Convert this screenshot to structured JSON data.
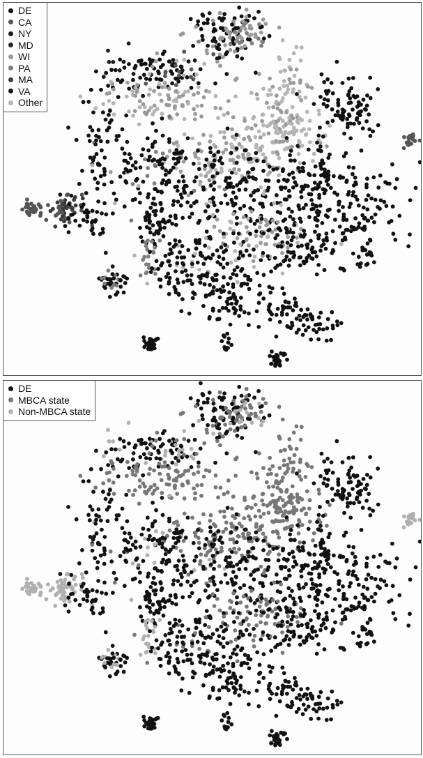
{
  "chart_data": [
    {
      "type": "scatter",
      "title": "",
      "xlabel": "",
      "ylabel": "",
      "grid": false,
      "legend_position": "top-left",
      "axes": "none",
      "series": [
        {
          "name": "DE",
          "color": "#111111"
        },
        {
          "name": "CA",
          "color": "#555555"
        },
        {
          "name": "NY",
          "color": "#1c1c1c"
        },
        {
          "name": "MD",
          "color": "#262626"
        },
        {
          "name": "WI",
          "color": "#9a9a9a"
        },
        {
          "name": "PA",
          "color": "#7d7d7d"
        },
        {
          "name": "MA",
          "color": "#3a3a3a"
        },
        {
          "name": "VA",
          "color": "#181818"
        },
        {
          "name": "Other",
          "color": "#b5b5b5"
        }
      ]
    },
    {
      "type": "scatter",
      "title": "",
      "xlabel": "",
      "ylabel": "",
      "grid": false,
      "legend_position": "top-left",
      "axes": "none",
      "series": [
        {
          "name": "DE",
          "color": "#111111"
        },
        {
          "name": "MBCA state",
          "color": "#777777"
        },
        {
          "name": "Non-MBCA state",
          "color": "#b0b0b0"
        }
      ]
    }
  ]
}
